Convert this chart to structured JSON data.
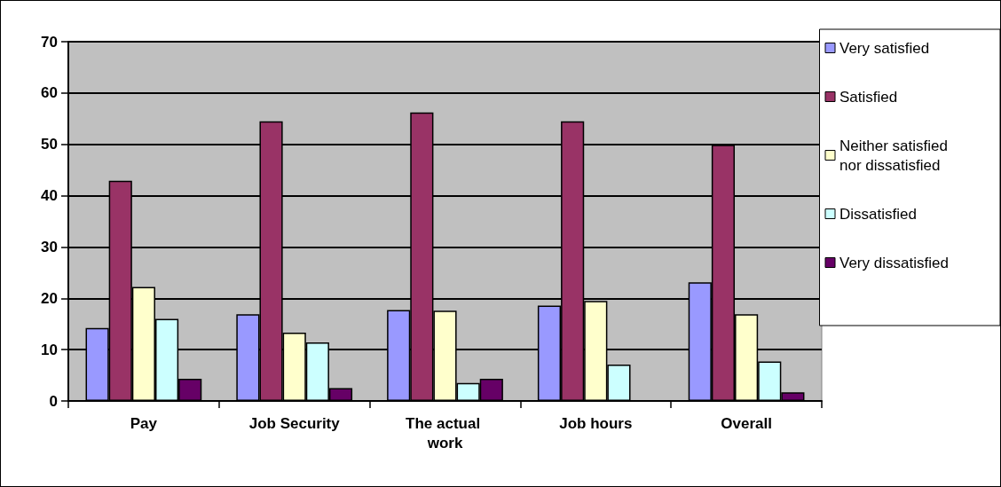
{
  "chart_data": {
    "type": "bar",
    "categories": [
      "Pay",
      "Job Security",
      "The actual work",
      "Job hours",
      "Overall"
    ],
    "series": [
      {
        "name": "Very satisfied",
        "color": "#9999ff",
        "values": [
          14.2,
          16.9,
          17.7,
          18.6,
          23.1
        ]
      },
      {
        "name": "Satisfied",
        "color": "#993366",
        "values": [
          42.9,
          54.5,
          56.2,
          54.5,
          49.9
        ]
      },
      {
        "name": "Neither satisfied nor dissatisfied",
        "color": "#ffffcc",
        "values": [
          22.2,
          13.3,
          17.6,
          19.5,
          16.9
        ]
      },
      {
        "name": "Dissatisfied",
        "color": "#ccffff",
        "values": [
          16.0,
          11.4,
          3.5,
          7.1,
          7.7
        ]
      },
      {
        "name": "Very dissatisfied",
        "color": "#660066",
        "values": [
          4.3,
          2.5,
          4.3,
          null,
          1.7
        ]
      }
    ],
    "ylim": [
      0,
      70
    ],
    "yticks": [
      0,
      10,
      20,
      30,
      40,
      50,
      60,
      70
    ],
    "grid": "y",
    "legend": "right"
  }
}
